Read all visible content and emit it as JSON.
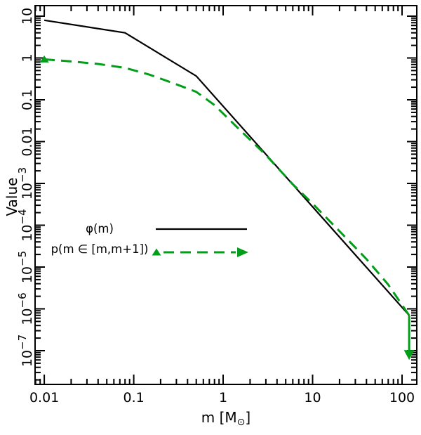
{
  "chart_data": {
    "type": "line",
    "title": "",
    "xlabel": {
      "pre": "m [M",
      "sun": "⊙",
      "post": "]"
    },
    "ylabel": "Value",
    "xscale": "log",
    "yscale": "log",
    "xlim": [
      0.0079,
      146
    ],
    "ylim": [
      1.56e-08,
      17.9
    ],
    "grid": false,
    "frame_color": "#000000",
    "accent_green": "#009e19",
    "x_ticks": [
      {
        "v": 0.01,
        "label": "0.01"
      },
      {
        "v": 0.1,
        "label": "0.1"
      },
      {
        "v": 1,
        "label": "1"
      },
      {
        "v": 10,
        "label": "10"
      },
      {
        "v": 100,
        "label": "100"
      }
    ],
    "y_ticks": [
      {
        "v": 10,
        "base": "10",
        "exp": ""
      },
      {
        "v": 1,
        "base": "1",
        "exp": ""
      },
      {
        "v": 0.1,
        "base": "0.1",
        "exp": ""
      },
      {
        "v": 0.01,
        "base": "0.01",
        "exp": ""
      },
      {
        "v": 0.001,
        "base": "10",
        "exp": "−3"
      },
      {
        "v": 0.0001,
        "base": "10",
        "exp": "−4"
      },
      {
        "v": 1e-05,
        "base": "10",
        "exp": "−5"
      },
      {
        "v": 1e-06,
        "base": "10",
        "exp": "−6"
      },
      {
        "v": 1e-07,
        "base": "10",
        "exp": "−7"
      }
    ],
    "series": [
      {
        "name": "phi",
        "label": "φ(m)",
        "color": "#000000",
        "style": "solid",
        "width": 2.2,
        "points": [
          [
            0.01,
            8
          ],
          [
            0.08,
            4
          ],
          [
            0.5,
            0.37
          ],
          [
            120,
            7e-07
          ]
        ]
      },
      {
        "name": "p_interval",
        "label": "p(m ∈ [m,m+1])",
        "color": "#009e19",
        "style": "dashed",
        "width": 3,
        "start_marker": "triangle-up",
        "points": [
          [
            0.01,
            0.93
          ],
          [
            0.02,
            0.83
          ],
          [
            0.04,
            0.72
          ],
          [
            0.08,
            0.58
          ],
          [
            0.15,
            0.4
          ],
          [
            0.3,
            0.235
          ],
          [
            0.5,
            0.155
          ],
          [
            0.8,
            0.075
          ],
          [
            1.5,
            0.02
          ],
          [
            3,
            0.0048
          ],
          [
            6,
            0.00095
          ],
          [
            10,
            0.00033
          ],
          [
            20,
            7.2e-05
          ],
          [
            40,
            1.55e-05
          ],
          [
            70,
            3.8e-06
          ],
          [
            120,
            7e-07
          ]
        ],
        "terminal_drop": {
          "x": 120,
          "y_from": 7e-07,
          "y_to": 6e-08,
          "arrow": "down"
        }
      }
    ],
    "legend": {
      "position": "left-middle"
    }
  }
}
